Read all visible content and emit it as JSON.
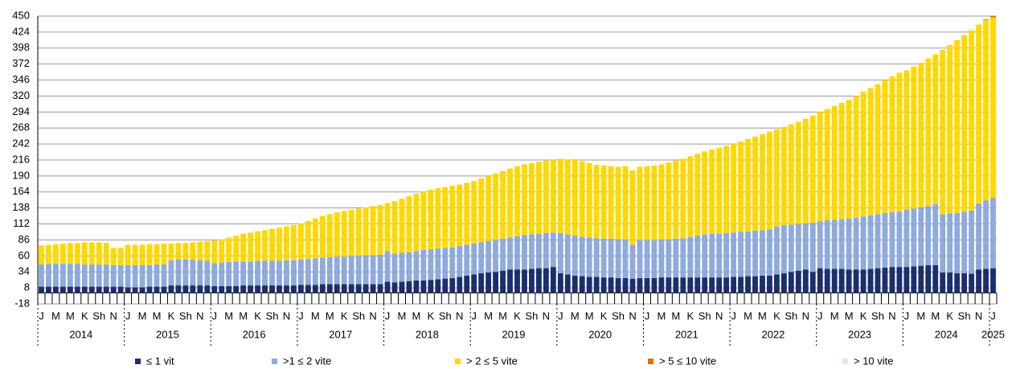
{
  "chart_data": {
    "type": "stacked_bar",
    "categories": [
      "J",
      null,
      "M",
      null,
      "M",
      null,
      "K",
      null,
      "Sh",
      null,
      "N",
      null,
      "J",
      null,
      "M",
      null,
      "M",
      null,
      "K",
      null,
      "Sh",
      null,
      "N",
      null,
      "J",
      null,
      "M",
      null,
      "M",
      null,
      "K",
      null,
      "Sh",
      null,
      "N",
      null,
      "J",
      null,
      "M",
      null,
      "M",
      null,
      "K",
      null,
      "Sh",
      null,
      "N",
      null,
      "J",
      null,
      "M",
      null,
      "M",
      null,
      "K",
      null,
      "Sh",
      null,
      "N",
      null,
      "J",
      null,
      "M",
      null,
      "M",
      null,
      "K",
      null,
      "Sh",
      null,
      "N",
      null,
      "J",
      null,
      "M",
      null,
      "M",
      null,
      "K",
      null,
      "Sh",
      null,
      "N",
      null,
      "J",
      null,
      "M",
      null,
      "M",
      null,
      "K",
      null,
      "Sh",
      null,
      "N",
      null,
      "J",
      null,
      "M",
      null,
      "M",
      null,
      "K",
      null,
      "Sh",
      null,
      "N",
      null,
      "J",
      null,
      "M",
      null,
      "M",
      null,
      "K",
      null,
      "Sh",
      null,
      "N",
      null,
      "J",
      null,
      "M",
      null,
      "M",
      null,
      "K",
      null,
      "Sh",
      null,
      "N",
      null,
      "J"
    ],
    "years": [
      "2014",
      "2015",
      "2016",
      "2017",
      "2018",
      "2019",
      "2020",
      "2021",
      "2022",
      "2023",
      "2024",
      "2025"
    ],
    "ylim": [
      -18,
      450
    ],
    "yticks": [
      -18,
      8,
      34,
      60,
      86,
      112,
      138,
      164,
      190,
      216,
      242,
      268,
      294,
      320,
      346,
      372,
      398,
      424,
      450
    ],
    "grid": true,
    "series": [
      {
        "name": "≤ 1 vit",
        "color": "#1b2f6e",
        "values": [
          10,
          10,
          10,
          10,
          10,
          10,
          10,
          10,
          10,
          10,
          10,
          10,
          9,
          9,
          9,
          10,
          10,
          10,
          12,
          12,
          12,
          12,
          12,
          12,
          11,
          11,
          11,
          11,
          12,
          12,
          12,
          12,
          12,
          12,
          12,
          12,
          13,
          13,
          13,
          14,
          14,
          14,
          14,
          14,
          14,
          14,
          14,
          14,
          18,
          17,
          18,
          19,
          20,
          20,
          21,
          22,
          23,
          24,
          26,
          28,
          30,
          32,
          33,
          34,
          36,
          38,
          38,
          38,
          39,
          40,
          40,
          42,
          32,
          30,
          28,
          27,
          26,
          26,
          25,
          25,
          24,
          24,
          23,
          24,
          24,
          24,
          25,
          25,
          25,
          25,
          25,
          25,
          25,
          25,
          25,
          25,
          26,
          26,
          27,
          27,
          28,
          28,
          30,
          32,
          34,
          36,
          38,
          34,
          40,
          39,
          39,
          39,
          38,
          38,
          38,
          39,
          40,
          41,
          42,
          42,
          42,
          43,
          44,
          45,
          45,
          33,
          33,
          32,
          32,
          31,
          38,
          39,
          40
        ]
      },
      {
        "name": ">1 ≤ 2 vite",
        "color": "#8faadc",
        "values": [
          36,
          37,
          37,
          37,
          37,
          37,
          36,
          36,
          36,
          36,
          35,
          35,
          36,
          36,
          36,
          35,
          36,
          36,
          41,
          42,
          42,
          42,
          41,
          40,
          37,
          38,
          39,
          40,
          39,
          39,
          40,
          40,
          40,
          40,
          41,
          41,
          41,
          42,
          43,
          43,
          44,
          45,
          45,
          46,
          46,
          47,
          47,
          48,
          50,
          47,
          47,
          47,
          48,
          50,
          50,
          50,
          50,
          50,
          50,
          50,
          50,
          50,
          51,
          52,
          52,
          52,
          54,
          56,
          56,
          56,
          57,
          56,
          65,
          65,
          65,
          64,
          64,
          63,
          63,
          63,
          63,
          63,
          55,
          62,
          62,
          62,
          62,
          62,
          63,
          64,
          66,
          68,
          70,
          71,
          71,
          72,
          72,
          73,
          73,
          74,
          74,
          75,
          78,
          78,
          77,
          76,
          75,
          80,
          76,
          79,
          80,
          81,
          83,
          84,
          86,
          87,
          88,
          89,
          89,
          90,
          93,
          94,
          95,
          96,
          99,
          95,
          96,
          98,
          100,
          103,
          107,
          111,
          115
        ]
      },
      {
        "name": "> 2 ≤ 5 vite",
        "color": "#ffd800",
        "values": [
          31,
          31,
          32,
          33,
          34,
          34,
          36,
          36,
          36,
          35,
          28,
          28,
          33,
          33,
          33,
          34,
          33,
          34,
          27,
          27,
          27,
          28,
          30,
          32,
          37,
          38,
          40,
          42,
          45,
          47,
          48,
          50,
          52,
          54,
          55,
          57,
          59,
          62,
          65,
          68,
          70,
          72,
          74,
          75,
          77,
          78,
          80,
          81,
          78,
          85,
          88,
          91,
          93,
          95,
          97,
          98,
          99,
          100,
          100,
          101,
          102,
          104,
          106,
          108,
          110,
          112,
          114,
          115,
          116,
          117,
          118,
          119,
          121,
          122,
          123,
          123,
          121,
          119,
          119,
          118,
          118,
          119,
          121,
          119,
          120,
          121,
          122,
          125,
          127,
          129,
          131,
          133,
          135,
          137,
          140,
          142,
          144,
          147,
          150,
          153,
          156,
          159,
          158,
          160,
          163,
          166,
          170,
          174,
          178,
          181,
          185,
          189,
          193,
          198,
          203,
          207,
          211,
          216,
          221,
          226,
          227,
          231,
          235,
          240,
          244,
          267,
          274,
          281,
          287,
          293,
          291,
          294,
          293
        ]
      },
      {
        "name": "> 5 ≤ 10 vite",
        "color": "#e46c0a",
        "values": [
          0,
          0,
          0,
          0,
          0,
          0,
          0,
          0,
          0,
          0,
          0,
          0,
          0,
          0,
          0,
          0,
          0,
          0,
          0,
          0,
          0,
          0,
          0,
          0,
          0,
          0,
          0,
          0,
          0,
          0,
          0,
          0,
          0,
          0,
          0,
          0,
          0,
          0,
          0,
          0,
          0,
          0,
          0,
          0,
          0,
          0,
          0,
          0,
          0,
          0,
          0,
          0,
          0,
          0,
          0,
          0,
          0,
          0,
          0,
          0,
          0,
          0,
          0,
          0,
          0,
          0,
          0,
          0,
          0,
          0,
          0,
          0,
          0,
          0,
          0,
          0,
          0,
          0,
          0,
          0,
          0,
          0,
          0,
          0,
          0,
          0,
          0,
          0,
          0,
          0,
          0,
          0,
          0,
          0,
          0,
          0,
          0,
          0,
          0,
          0,
          0,
          0,
          0,
          0,
          0,
          0,
          0,
          0,
          0,
          0,
          0,
          0,
          0,
          0,
          0,
          0,
          0,
          0,
          0,
          0,
          0,
          0,
          0,
          0,
          0,
          0,
          0,
          0,
          0,
          0,
          0,
          1,
          2
        ]
      },
      {
        "name": "> 10 vite",
        "color": "#dfe5f7",
        "values": [
          0,
          0,
          0,
          0,
          0,
          0,
          0,
          0,
          0,
          0,
          0,
          0,
          0,
          0,
          0,
          0,
          0,
          0,
          0,
          0,
          0,
          0,
          0,
          0,
          0,
          0,
          0,
          0,
          0,
          0,
          0,
          0,
          0,
          0,
          0,
          0,
          0,
          0,
          0,
          0,
          0,
          0,
          0,
          0,
          0,
          0,
          0,
          0,
          0,
          0,
          0,
          0,
          0,
          0,
          0,
          0,
          0,
          0,
          0,
          0,
          0,
          0,
          0,
          0,
          0,
          0,
          0,
          0,
          0,
          0,
          0,
          0,
          0,
          0,
          0,
          0,
          0,
          0,
          0,
          0,
          0,
          0,
          0,
          0,
          0,
          0,
          0,
          0,
          0,
          0,
          0,
          0,
          0,
          0,
          0,
          0,
          0,
          0,
          0,
          0,
          0,
          0,
          0,
          0,
          0,
          0,
          0,
          0,
          0,
          0,
          0,
          0,
          0,
          0,
          0,
          0,
          0,
          0,
          0,
          0,
          0,
          0,
          0,
          0,
          0,
          0,
          0,
          0,
          0,
          0,
          0,
          0,
          0
        ]
      }
    ]
  }
}
